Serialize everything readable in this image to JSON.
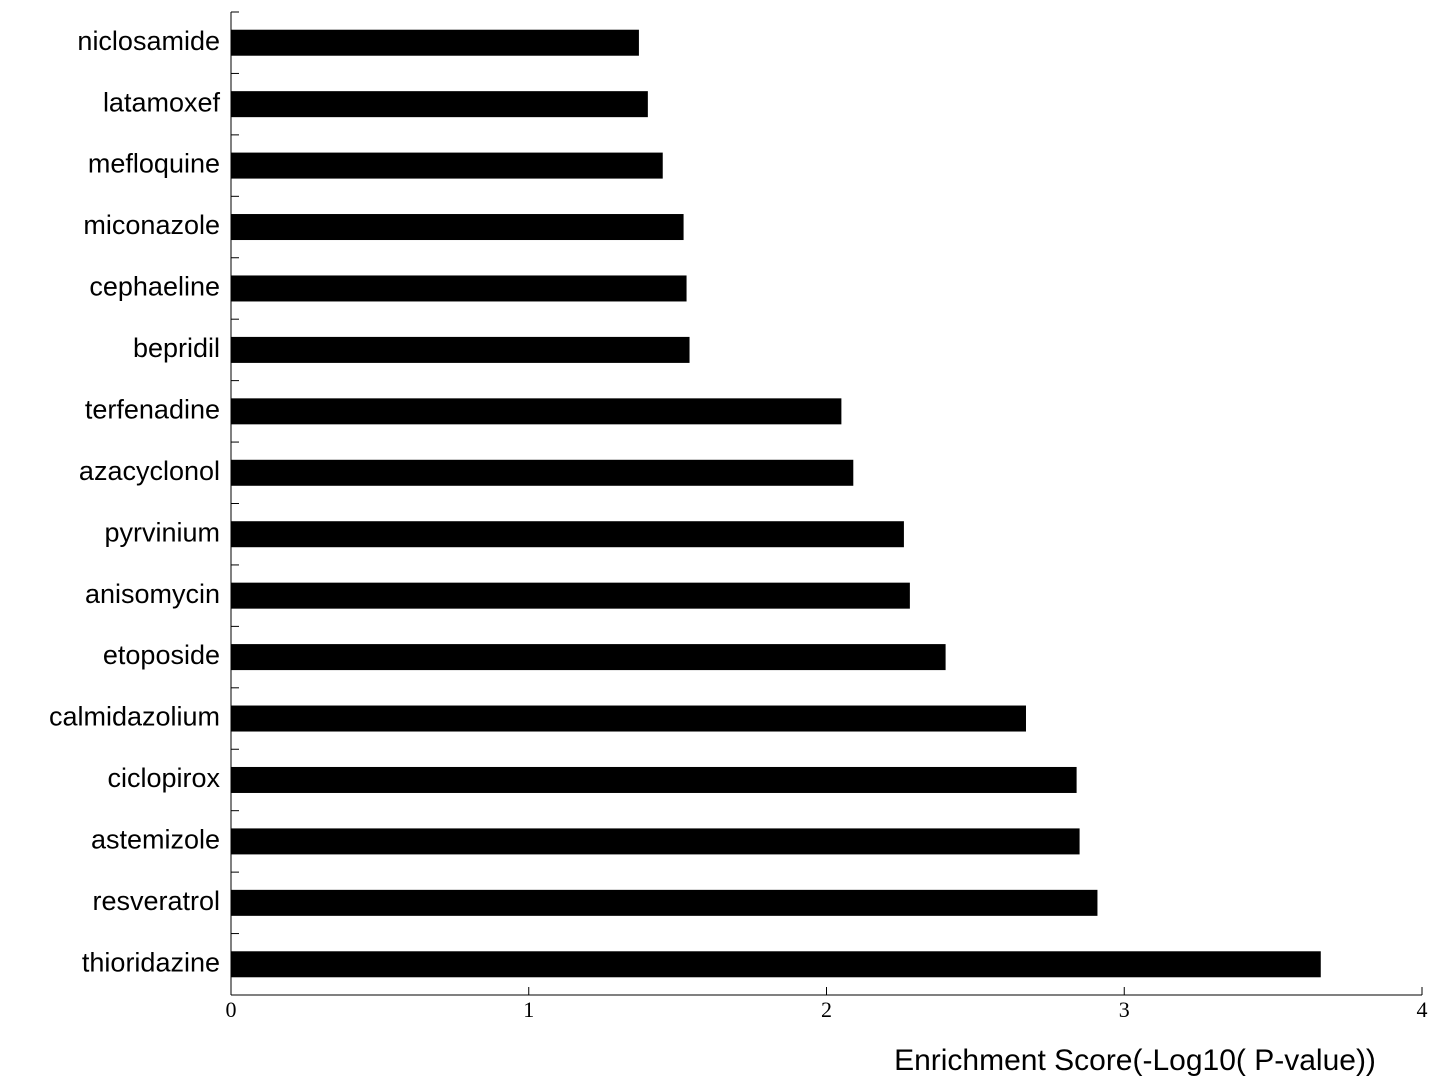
{
  "chart_data": {
    "type": "bar",
    "orientation": "horizontal",
    "x_label": "Enrichment Score(-Log10( P-value))",
    "categories": [
      "niclosamide",
      "latamoxef",
      "mefloquine",
      "miconazole",
      "cephaeline",
      "bepridil",
      "terfenadine",
      "azacyclonol",
      "pyrvinium",
      "anisomycin",
      "etoposide",
      "calmidazolium",
      "ciclopirox",
      "astemizole",
      "resveratrol",
      "thioridazine"
    ],
    "values": [
      1.37,
      1.4,
      1.45,
      1.52,
      1.53,
      1.54,
      2.05,
      2.09,
      2.26,
      2.28,
      2.4,
      2.67,
      2.84,
      2.85,
      2.91,
      3.66
    ],
    "color": "#000000",
    "xlim": [
      0,
      4
    ],
    "xticks": [
      0,
      1,
      2,
      3,
      4
    ]
  }
}
